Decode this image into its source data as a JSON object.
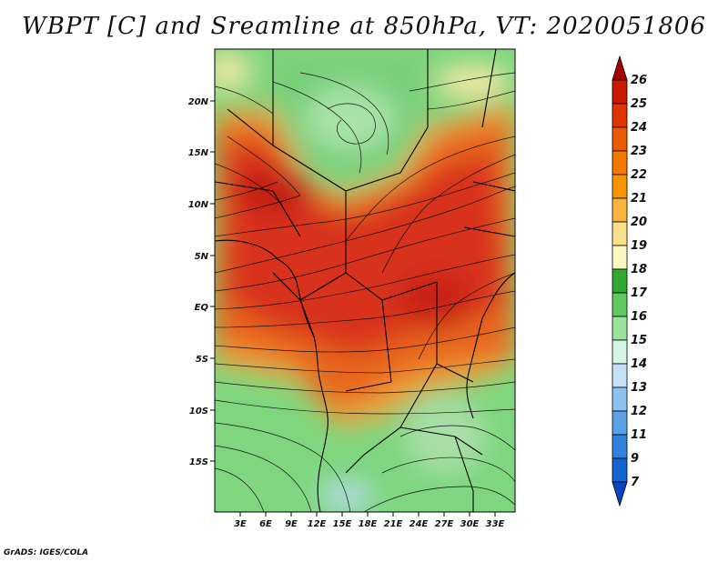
{
  "title": "WBPT [C] and Sreamline at 850hPa, VT: 2020051806",
  "credit": "GrADS: IGES/COLA",
  "latitude_labels": [
    "20N",
    "15N",
    "10N",
    "5N",
    "EQ",
    "5S",
    "10S",
    "15S"
  ],
  "longitude_labels": [
    "3E",
    "6E",
    "9E",
    "12E",
    "15E",
    "18E",
    "21E",
    "24E",
    "27E",
    "30E",
    "33E"
  ],
  "colorbar": {
    "labels": [
      "26",
      "25",
      "24",
      "23",
      "22",
      "21",
      "20",
      "19",
      "18",
      "17",
      "16",
      "15",
      "14",
      "13",
      "12",
      "11",
      "9",
      "7"
    ],
    "colors": [
      "#a50000",
      "#c81a00",
      "#e03400",
      "#eb5a00",
      "#f27800",
      "#f59500",
      "#f8b43c",
      "#fae08c",
      "#fbf7c0",
      "#33a833",
      "#5fc95f",
      "#9be29b",
      "#d4f4e4",
      "#c4e0f7",
      "#8cc2ef",
      "#5aa2e6",
      "#3182dc",
      "#1463d2",
      "#0a45c2"
    ]
  },
  "colors": {
    "warm_core": "#d8301a",
    "warm_edge": "#f3a13a",
    "cool_land": "#7ed67e",
    "coastline": "#000000"
  }
}
